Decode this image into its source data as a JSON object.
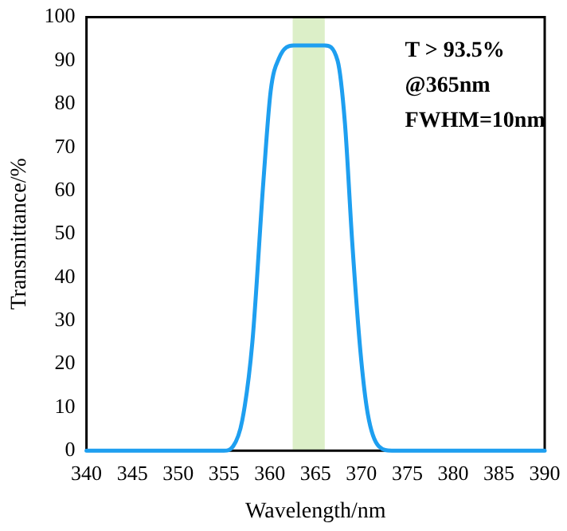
{
  "chart_data": {
    "type": "line",
    "xlabel": "Wavelength/nm",
    "ylabel": "Transmittance/%",
    "x": [
      340,
      345,
      350,
      355,
      356,
      357,
      358.1,
      359.3,
      360.1,
      361,
      362.6,
      364.3,
      366,
      367.4,
      368.2,
      369,
      369.9,
      370.7,
      371.9,
      373.3,
      375,
      380,
      385,
      390
    ],
    "series": [
      {
        "color": "#1e9ff0",
        "values": [
          0,
          0,
          0,
          0,
          1,
          7,
          25,
          62,
          83,
          90.5,
          93.5,
          93.5,
          93.5,
          90,
          75.6,
          48,
          22.7,
          8.4,
          1,
          0,
          0,
          0,
          0,
          0
        ]
      }
    ],
    "xlim": [
      340,
      390
    ],
    "xticks": [
      340,
      345,
      350,
      355,
      360,
      365,
      370,
      375,
      380,
      385,
      390
    ],
    "ylim": [
      0,
      100
    ],
    "yticks": [
      0,
      10,
      20,
      30,
      40,
      50,
      60,
      70,
      80,
      90,
      100
    ],
    "bands": [
      {
        "axis": "x",
        "from": 362.5,
        "to": 366,
        "color": "#dcefc8"
      }
    ],
    "annotations": [
      "T > 93.5%",
      "@365nm",
      "FWHM=10nm"
    ],
    "grid": false,
    "legend": false,
    "marker": "none",
    "line_style": "solid"
  }
}
